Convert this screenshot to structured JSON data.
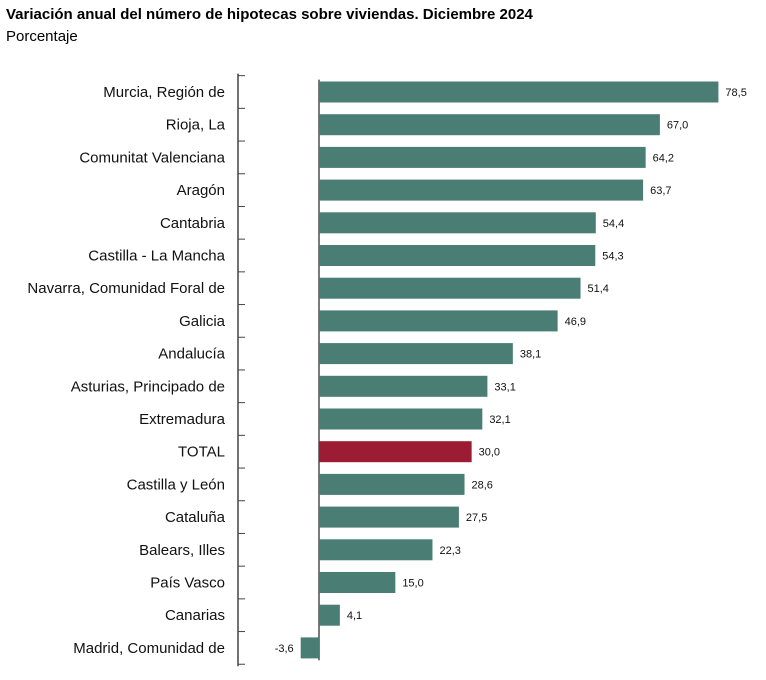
{
  "title": "Variación anual del número de hipotecas sobre viviendas. Diciembre 2024",
  "subtitle": "Porcentaje",
  "colors": {
    "bar": "#4a7d74",
    "highlight": "#9b1c33",
    "axis": "#444444"
  },
  "chart_data": {
    "type": "bar",
    "orientation": "horizontal",
    "title": "Variación anual del número de hipotecas sobre viviendas. Diciembre 2024",
    "subtitle": "Porcentaje",
    "categories": [
      "Murcia, Región de",
      "Rioja, La",
      "Comunitat Valenciana",
      "Aragón",
      "Cantabria",
      "Castilla - La Mancha",
      "Navarra, Comunidad Foral de",
      "Galicia",
      "Andalucía",
      "Asturias, Principado de",
      "Extremadura",
      "TOTAL",
      "Castilla y León",
      "Cataluña",
      "Balears, Illes",
      "País Vasco",
      "Canarias",
      "Madrid, Comunidad de"
    ],
    "values": [
      78.5,
      67.0,
      64.2,
      63.7,
      54.4,
      54.3,
      51.4,
      46.9,
      38.1,
      33.1,
      32.1,
      30.0,
      28.6,
      27.5,
      22.3,
      15.0,
      4.1,
      -3.6
    ],
    "value_labels": [
      "78,5",
      "67,0",
      "64,2",
      "63,7",
      "54,4",
      "54,3",
      "51,4",
      "46,9",
      "38,1",
      "33,1",
      "32,1",
      "30,0",
      "28,6",
      "27,5",
      "22,3",
      "15,0",
      "4,1",
      "-3,6"
    ],
    "highlight_category": "TOTAL",
    "grid": false,
    "legend": "none"
  }
}
